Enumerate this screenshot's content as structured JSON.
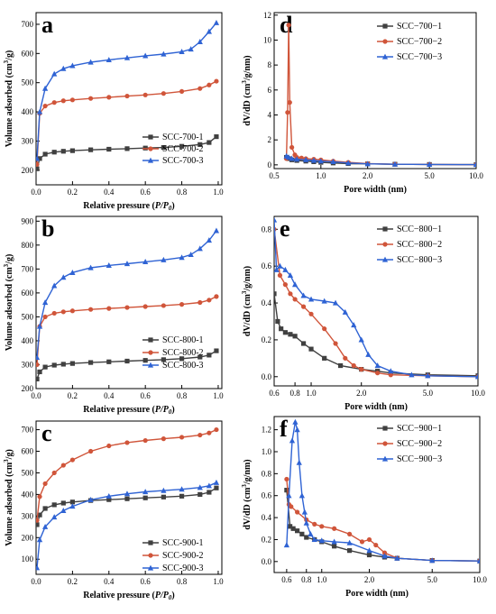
{
  "figure": {
    "panels": [
      "a",
      "b",
      "c",
      "d",
      "e",
      "f"
    ]
  },
  "chart_data": [
    {
      "id": "a",
      "type": "line",
      "panel_letter": "a",
      "title": "",
      "xlabel": "Relative pressure (P/P0)",
      "ylabel": "Volume adsorbed (cm3/g)",
      "xscale": "linear",
      "xlim": [
        0.0,
        1.02
      ],
      "ylim": [
        150,
        740
      ],
      "xticks": [
        0.0,
        0.2,
        0.4,
        0.6,
        0.8,
        1.0
      ],
      "xtick_labels": [
        "0.0",
        "0.2",
        "0.4",
        "0.6",
        "0.8",
        "1.0"
      ],
      "yticks": [
        200,
        300,
        400,
        500,
        600,
        700
      ],
      "ytick_labels": [
        "200",
        "300",
        "400",
        "500",
        "600",
        "700"
      ],
      "legend_position": "bottom-right",
      "grid": false,
      "series": [
        {
          "name": "SCC-700-1",
          "color": "#404040",
          "marker": "square",
          "x": [
            0.005,
            0.02,
            0.05,
            0.1,
            0.15,
            0.2,
            0.3,
            0.4,
            0.5,
            0.6,
            0.7,
            0.8,
            0.9,
            0.95,
            0.99
          ],
          "y": [
            205,
            240,
            255,
            262,
            265,
            267,
            270,
            272,
            274,
            276,
            278,
            282,
            288,
            295,
            315
          ]
        },
        {
          "name": "SCC-700-2",
          "color": "#d0553a",
          "marker": "circle",
          "x": [
            0.005,
            0.02,
            0.05,
            0.1,
            0.15,
            0.2,
            0.3,
            0.4,
            0.5,
            0.6,
            0.7,
            0.8,
            0.9,
            0.95,
            0.99
          ],
          "y": [
            220,
            395,
            420,
            432,
            438,
            441,
            446,
            450,
            454,
            458,
            463,
            470,
            480,
            492,
            505
          ]
        },
        {
          "name": "SCC-700-3",
          "color": "#2f63d4",
          "marker": "triangle",
          "x": [
            0.005,
            0.02,
            0.05,
            0.1,
            0.15,
            0.2,
            0.3,
            0.4,
            0.5,
            0.6,
            0.7,
            0.8,
            0.85,
            0.9,
            0.95,
            0.99
          ],
          "y": [
            240,
            400,
            480,
            530,
            548,
            558,
            570,
            578,
            585,
            592,
            598,
            606,
            615,
            640,
            675,
            705
          ]
        }
      ]
    },
    {
      "id": "b",
      "type": "line",
      "panel_letter": "b",
      "title": "",
      "xlabel": "Relative pressure (P/P0)",
      "ylabel": "Volume adsorbed (cm3/g)",
      "xscale": "linear",
      "xlim": [
        0.0,
        1.02
      ],
      "ylim": [
        200,
        920
      ],
      "xticks": [
        0.0,
        0.2,
        0.4,
        0.6,
        0.8,
        1.0
      ],
      "xtick_labels": [
        "0.0",
        "0.2",
        "0.4",
        "0.6",
        "0.8",
        "1.0"
      ],
      "yticks": [
        200,
        300,
        400,
        500,
        600,
        700,
        800,
        900
      ],
      "ytick_labels": [
        "200",
        "300",
        "400",
        "500",
        "600",
        "700",
        "800",
        "900"
      ],
      "legend_position": "bottom-right",
      "grid": false,
      "series": [
        {
          "name": "SCC-800-1",
          "color": "#404040",
          "marker": "square",
          "x": [
            0.005,
            0.02,
            0.05,
            0.1,
            0.15,
            0.2,
            0.3,
            0.4,
            0.5,
            0.6,
            0.7,
            0.8,
            0.9,
            0.95,
            0.99
          ],
          "y": [
            240,
            270,
            290,
            298,
            302,
            305,
            309,
            312,
            315,
            318,
            321,
            325,
            332,
            340,
            358
          ]
        },
        {
          "name": "SCC-800-2",
          "color": "#d0553a",
          "marker": "circle",
          "x": [
            0.005,
            0.02,
            0.05,
            0.1,
            0.15,
            0.2,
            0.3,
            0.4,
            0.5,
            0.6,
            0.7,
            0.8,
            0.9,
            0.95,
            0.99
          ],
          "y": [
            300,
            460,
            500,
            515,
            521,
            525,
            531,
            535,
            539,
            543,
            547,
            552,
            560,
            570,
            585
          ]
        },
        {
          "name": "SCC-800-3",
          "color": "#2f63d4",
          "marker": "triangle",
          "x": [
            0.005,
            0.02,
            0.05,
            0.1,
            0.15,
            0.2,
            0.3,
            0.4,
            0.5,
            0.6,
            0.7,
            0.8,
            0.85,
            0.9,
            0.95,
            0.99
          ],
          "y": [
            330,
            460,
            560,
            630,
            665,
            685,
            705,
            715,
            722,
            730,
            738,
            748,
            760,
            785,
            820,
            860
          ]
        }
      ]
    },
    {
      "id": "c",
      "type": "line",
      "panel_letter": "c",
      "title": "",
      "xlabel": "Relative pressure (P/P0)",
      "ylabel": "Volume adsorbed (cm3/g)",
      "xscale": "linear",
      "xlim": [
        0.0,
        1.02
      ],
      "ylim": [
        30,
        740
      ],
      "xticks": [
        0.0,
        0.2,
        0.4,
        0.6,
        0.8,
        1.0
      ],
      "xtick_labels": [
        "0.0",
        "0.2",
        "0.4",
        "0.6",
        "0.8",
        "1.0"
      ],
      "yticks": [
        100,
        200,
        300,
        400,
        500,
        600,
        700
      ],
      "ytick_labels": [
        "100",
        "200",
        "300",
        "400",
        "500",
        "600",
        "700"
      ],
      "legend_position": "bottom-right",
      "grid": false,
      "series": [
        {
          "name": "SCC-900-1",
          "color": "#404040",
          "marker": "square",
          "x": [
            0.005,
            0.02,
            0.05,
            0.1,
            0.15,
            0.2,
            0.3,
            0.4,
            0.5,
            0.6,
            0.7,
            0.8,
            0.9,
            0.95,
            0.99
          ],
          "y": [
            260,
            305,
            335,
            352,
            360,
            365,
            372,
            376,
            380,
            384,
            388,
            392,
            400,
            410,
            430
          ]
        },
        {
          "name": "SCC-900-2",
          "color": "#d0553a",
          "marker": "circle",
          "x": [
            0.005,
            0.02,
            0.05,
            0.1,
            0.15,
            0.2,
            0.3,
            0.4,
            0.5,
            0.6,
            0.7,
            0.8,
            0.9,
            0.95,
            0.99
          ],
          "y": [
            280,
            390,
            450,
            500,
            535,
            560,
            600,
            625,
            640,
            650,
            658,
            665,
            675,
            685,
            700
          ]
        },
        {
          "name": "SCC-900-3",
          "color": "#2f63d4",
          "marker": "triangle",
          "x": [
            0.005,
            0.02,
            0.05,
            0.1,
            0.15,
            0.2,
            0.3,
            0.4,
            0.5,
            0.6,
            0.7,
            0.8,
            0.9,
            0.95,
            0.99
          ],
          "y": [
            60,
            190,
            250,
            295,
            325,
            345,
            375,
            392,
            403,
            412,
            418,
            424,
            432,
            440,
            455
          ]
        }
      ]
    },
    {
      "id": "d",
      "type": "line",
      "panel_letter": "d",
      "title": "",
      "xlabel": "Pore width (nm)",
      "ylabel": "dV/dD (cm3/g/nm)",
      "xscale": "log",
      "xlim": [
        0.5,
        10.0
      ],
      "ylim": [
        -0.3,
        12.2
      ],
      "xticks": [
        0.5,
        1.0,
        2.0,
        5.0,
        10.0
      ],
      "xtick_labels": [
        "0.5",
        "1.0",
        "2.0",
        "5.0",
        "10.0"
      ],
      "yticks": [
        0,
        2,
        4,
        6,
        8,
        10,
        12
      ],
      "ytick_labels": [
        "0",
        "2",
        "4",
        "6",
        "8",
        "10",
        "12"
      ],
      "legend_position": "top-right",
      "grid": false,
      "series": [
        {
          "name": "SCC−700−1",
          "color": "#404040",
          "marker": "square",
          "x": [
            0.6,
            0.62,
            0.65,
            0.7,
            0.8,
            0.9,
            1.0,
            1.2,
            1.5,
            2.0,
            3.0,
            5.0,
            10.0
          ],
          "y": [
            0.6,
            0.5,
            0.4,
            0.35,
            0.3,
            0.25,
            0.2,
            0.15,
            0.1,
            0.08,
            0.05,
            0.03,
            0.02
          ]
        },
        {
          "name": "SCC−700−2",
          "color": "#d0553a",
          "marker": "circle",
          "x": [
            0.6,
            0.61,
            0.62,
            0.63,
            0.65,
            0.68,
            0.7,
            0.75,
            0.8,
            0.9,
            1.0,
            1.2,
            1.5,
            2.0,
            3.0,
            5.0,
            10.0
          ],
          "y": [
            0.5,
            4.2,
            11.2,
            5.0,
            1.4,
            0.8,
            0.6,
            0.55,
            0.5,
            0.45,
            0.4,
            0.3,
            0.2,
            0.1,
            0.05,
            0.03,
            0.02
          ]
        },
        {
          "name": "SCC−700−3",
          "color": "#2f63d4",
          "marker": "triangle",
          "x": [
            0.6,
            0.62,
            0.65,
            0.7,
            0.8,
            0.9,
            1.0,
            1.2,
            1.5,
            2.0,
            3.0,
            5.0,
            10.0
          ],
          "y": [
            0.7,
            0.6,
            0.5,
            0.45,
            0.4,
            0.35,
            0.3,
            0.25,
            0.15,
            0.08,
            0.05,
            0.03,
            0.02
          ]
        }
      ]
    },
    {
      "id": "e",
      "type": "line",
      "panel_letter": "e",
      "title": "",
      "xlabel": "Pore width (nm)",
      "ylabel": "dV/dD (cm3/g/nm)",
      "xscale": "log",
      "xlim": [
        0.6,
        10.0
      ],
      "ylim": [
        -0.05,
        0.87
      ],
      "xticks": [
        0.6,
        0.8,
        1.0,
        2.0,
        5.0,
        10.0
      ],
      "xtick_labels": [
        "0.6",
        "0.8",
        "1.0",
        "2.0",
        "5.0",
        "10.0"
      ],
      "yticks": [
        0.0,
        0.2,
        0.4,
        0.6,
        0.8
      ],
      "ytick_labels": [
        "0.0",
        "0.2",
        "0.4",
        "0.6",
        "0.8"
      ],
      "legend_position": "top-right",
      "grid": false,
      "series": [
        {
          "name": "SCC−800−1",
          "color": "#404040",
          "marker": "square",
          "x": [
            0.6,
            0.63,
            0.66,
            0.7,
            0.75,
            0.8,
            0.9,
            1.0,
            1.2,
            1.5,
            2.0,
            2.5,
            3.0,
            5.0,
            10.0
          ],
          "y": [
            0.45,
            0.3,
            0.26,
            0.24,
            0.23,
            0.22,
            0.18,
            0.15,
            0.1,
            0.06,
            0.04,
            0.03,
            0.02,
            0.01,
            0.005
          ]
        },
        {
          "name": "SCC−800−2",
          "color": "#d0553a",
          "marker": "circle",
          "x": [
            0.6,
            0.65,
            0.7,
            0.75,
            0.8,
            0.9,
            1.0,
            1.2,
            1.4,
            1.6,
            1.8,
            2.0,
            2.5,
            3.0,
            5.0,
            10.0
          ],
          "y": [
            0.8,
            0.55,
            0.5,
            0.45,
            0.42,
            0.38,
            0.34,
            0.26,
            0.18,
            0.1,
            0.06,
            0.04,
            0.02,
            0.01,
            0.005,
            0.0
          ]
        },
        {
          "name": "SCC−800−3",
          "color": "#2f63d4",
          "marker": "triangle",
          "x": [
            0.6,
            0.62,
            0.65,
            0.7,
            0.75,
            0.8,
            0.9,
            1.0,
            1.2,
            1.4,
            1.6,
            1.8,
            2.0,
            2.2,
            2.5,
            3.0,
            4.0,
            5.0,
            10.0
          ],
          "y": [
            0.85,
            0.58,
            0.6,
            0.58,
            0.55,
            0.5,
            0.44,
            0.42,
            0.41,
            0.4,
            0.35,
            0.28,
            0.2,
            0.12,
            0.06,
            0.03,
            0.01,
            0.005,
            0.0
          ]
        }
      ]
    },
    {
      "id": "f",
      "type": "line",
      "panel_letter": "f",
      "title": "",
      "xlabel": "Pore width (nm)",
      "ylabel": "dV/dD (cm3/g/nm)",
      "xscale": "log",
      "xlim": [
        0.5,
        10.0
      ],
      "ylim": [
        -0.1,
        1.32
      ],
      "xticks": [
        0.6,
        0.8,
        1.0,
        2.0,
        5.0,
        10.0
      ],
      "xtick_labels": [
        "0.6",
        "0.8",
        "1.0",
        "2.0",
        "5.0",
        "10.0"
      ],
      "yticks": [
        0.0,
        0.2,
        0.4,
        0.6,
        0.8,
        1.0,
        1.2
      ],
      "ytick_labels": [
        "0.0",
        "0.2",
        "0.4",
        "0.6",
        "0.8",
        "1.0",
        "1.2"
      ],
      "legend_position": "top-right",
      "grid": false,
      "series": [
        {
          "name": "SCC−900−1",
          "color": "#404040",
          "marker": "square",
          "x": [
            0.6,
            0.63,
            0.66,
            0.7,
            0.75,
            0.8,
            0.9,
            1.0,
            1.2,
            1.5,
            2.0,
            2.5,
            3.0,
            5.0,
            10.0
          ],
          "y": [
            0.65,
            0.32,
            0.3,
            0.28,
            0.25,
            0.22,
            0.2,
            0.18,
            0.14,
            0.1,
            0.06,
            0.04,
            0.03,
            0.01,
            0.005
          ]
        },
        {
          "name": "SCC−900−2",
          "color": "#d0553a",
          "marker": "circle",
          "x": [
            0.6,
            0.62,
            0.64,
            0.7,
            0.8,
            0.9,
            1.0,
            1.2,
            1.5,
            1.8,
            2.0,
            2.2,
            2.5,
            3.0,
            5.0,
            10.0
          ],
          "y": [
            0.75,
            0.52,
            0.5,
            0.45,
            0.38,
            0.34,
            0.32,
            0.3,
            0.25,
            0.18,
            0.2,
            0.15,
            0.08,
            0.03,
            0.01,
            0.005
          ]
        },
        {
          "name": "SCC−900−3",
          "color": "#2f63d4",
          "marker": "triangle",
          "x": [
            0.6,
            0.62,
            0.65,
            0.68,
            0.7,
            0.72,
            0.75,
            0.78,
            0.8,
            0.85,
            0.9,
            1.0,
            1.2,
            1.5,
            2.0,
            2.5,
            3.0,
            5.0,
            10.0
          ],
          "y": [
            0.15,
            0.6,
            1.1,
            1.27,
            1.2,
            0.9,
            0.6,
            0.45,
            0.35,
            0.25,
            0.2,
            0.19,
            0.18,
            0.17,
            0.1,
            0.05,
            0.03,
            0.01,
            0.005
          ]
        }
      ]
    }
  ]
}
